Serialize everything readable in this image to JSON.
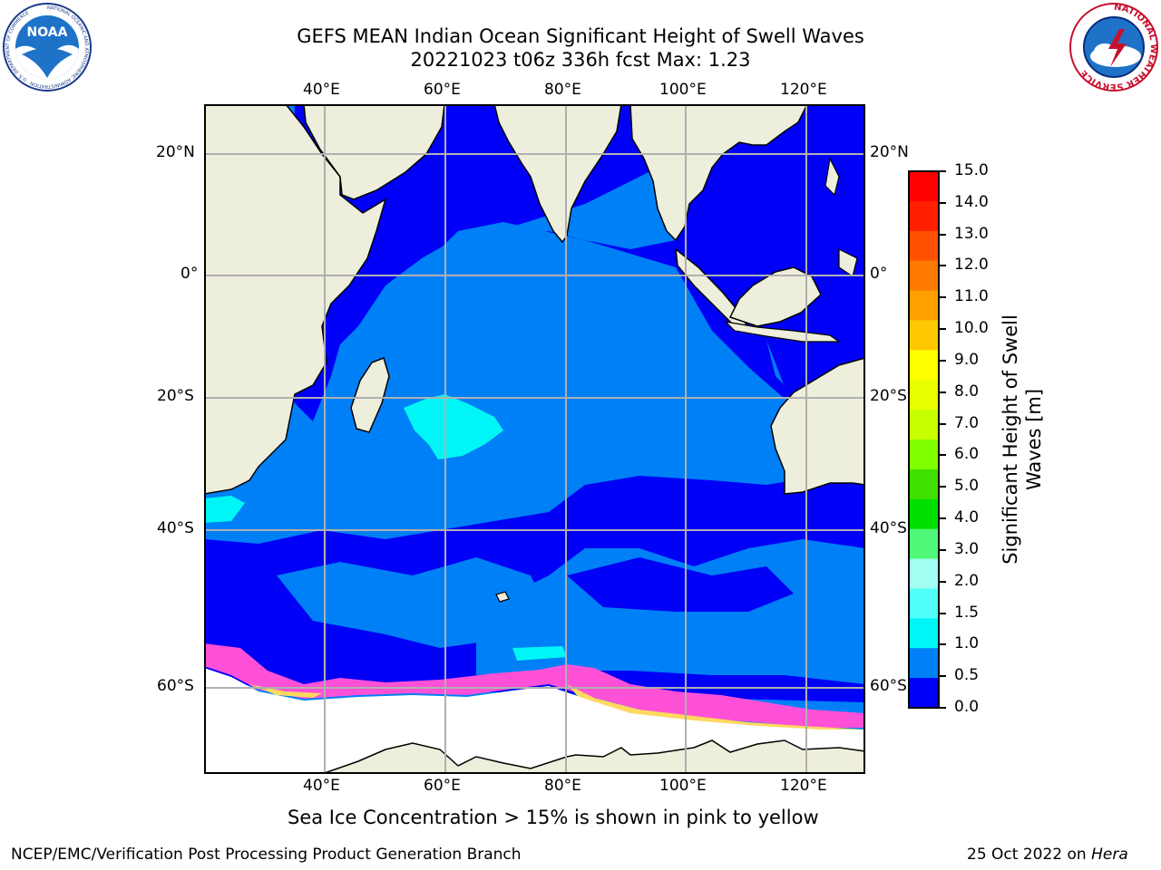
{
  "header": {
    "title_line1": "GEFS MEAN Indian Ocean Significant Height of Swell Waves",
    "title_line2": "20221023 t06z 336h fcst   Max: 1.23"
  },
  "logos": {
    "noaa_text": "NOAA",
    "noaa_ring_text": "NATIONAL OCEANIC AND ATMOSPHERIC ADMINISTRATION · U.S. DEPARTMENT OF COMMERCE",
    "nws_ring_text": "NATIONAL WEATHER SERVICE"
  },
  "map": {
    "lon_labels": [
      "40°E",
      "60°E",
      "80°E",
      "100°E",
      "120°E"
    ],
    "lat_labels_left": [
      "20°N",
      "0°",
      "20°S",
      "40°S",
      "60°S"
    ],
    "lat_labels_right": [
      "20°N",
      "0°",
      "20°S",
      "40°S",
      "60°S"
    ],
    "colors": {
      "land": "#eeeedc",
      "ocean_low": "#0000f6",
      "ocean_mid": "#0080f6",
      "ocean_cyan": "#00f6f6",
      "ice": "#ffffff",
      "ice_edge_pink": "#ff50d8",
      "ice_edge_yellow": "#ffd860",
      "grid": "#b0b0b0"
    }
  },
  "colorbar": {
    "label_line1": "Significant Height of Swell",
    "label_line2": "Waves [m]",
    "ticks": [
      "15.0",
      "14.0",
      "13.0",
      "12.0",
      "11.0",
      "10.0",
      "9.0",
      "8.0",
      "7.0",
      "6.0",
      "5.0",
      "4.0",
      "3.0",
      "2.0",
      "1.5",
      "1.0",
      "0.5",
      "0.0"
    ],
    "bands": [
      "#ff0000",
      "#ff2000",
      "#ff5000",
      "#ff7a00",
      "#ffa000",
      "#ffc800",
      "#ffff00",
      "#e8ff00",
      "#c8ff00",
      "#80ff00",
      "#40e000",
      "#00e000",
      "#50f878",
      "#a0fff0",
      "#50fff8",
      "#00f6f6",
      "#0080f6",
      "#0000f6"
    ]
  },
  "footer": {
    "sea_ice_note": "Sea Ice Concentration > 15% is shown in pink to yellow",
    "left": "NCEP/EMC/Verification Post Processing Product Generation Branch",
    "date": "25 Oct 2022 on ",
    "machine": "Hera"
  }
}
